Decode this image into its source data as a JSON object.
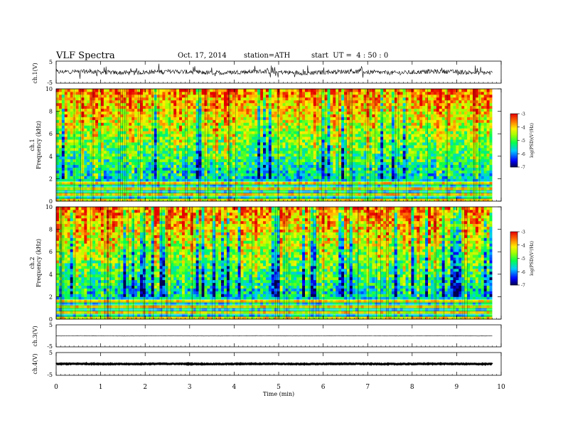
{
  "header": {
    "title": "VLF Spectra",
    "date": "Oct. 17, 2014",
    "station": "station=ATH",
    "start": "start  UT =  4 : 50 : 0"
  },
  "chart_data": [
    {
      "id": "ch1_waveform",
      "type": "line",
      "ylabel": "ch.1(V)",
      "ylim": [
        -5,
        5
      ],
      "yticks": [
        "5",
        "-5"
      ],
      "xlim": [
        0,
        10
      ],
      "trace": {
        "baseline": 0,
        "amplitude": 2.0,
        "color": "#000000"
      }
    },
    {
      "id": "ch1_spectrogram",
      "type": "heatmap",
      "ylabel_top": "ch.1",
      "ylabel": "Frequency (kHz)",
      "ylim": [
        0,
        10
      ],
      "yticks": [
        "0",
        "2",
        "4",
        "6",
        "8",
        "10"
      ],
      "xlim": [
        0,
        10
      ],
      "colorbar": {
        "label": "log(PSD)(V²/Hz)",
        "range": [
          -7,
          -3
        ],
        "ticks": [
          "-3",
          "-4",
          "-5",
          "-6",
          "-7"
        ]
      }
    },
    {
      "id": "ch2_spectrogram",
      "type": "heatmap",
      "ylabel_top": "ch.2",
      "ylabel": "Frequency (kHz)",
      "ylim": [
        0,
        10
      ],
      "yticks": [
        "0",
        "2",
        "4",
        "6",
        "8",
        "10"
      ],
      "xlim": [
        0,
        10
      ],
      "colorbar": {
        "label": "log(PSD)(V²/Hz)",
        "range": [
          -7,
          -3
        ],
        "ticks": [
          "-3",
          "-4",
          "-5",
          "-6",
          "-7"
        ]
      }
    },
    {
      "id": "ch3_waveform",
      "type": "line",
      "ylabel": "ch.3(V)",
      "ylim": [
        -5,
        5
      ],
      "yticks": [
        "5",
        "-5"
      ],
      "xlim": [
        0,
        10
      ],
      "trace": {
        "baseline": 0,
        "amplitude": 0.2,
        "color": "#000000"
      }
    },
    {
      "id": "ch4_waveform",
      "type": "line",
      "ylabel": "ch.4(V)",
      "ylim": [
        -5,
        5
      ],
      "yticks": [
        "5",
        "-5"
      ],
      "xlim": [
        0,
        10
      ],
      "trace": {
        "baseline": 0,
        "amplitude": 0.3,
        "color": "#000000"
      }
    }
  ],
  "time_axis": {
    "xlabel": "Time (min)",
    "ticks": [
      "0",
      "1",
      "2",
      "3",
      "4",
      "5",
      "6",
      "7",
      "8",
      "9",
      "10"
    ],
    "data_end": 9.8
  }
}
